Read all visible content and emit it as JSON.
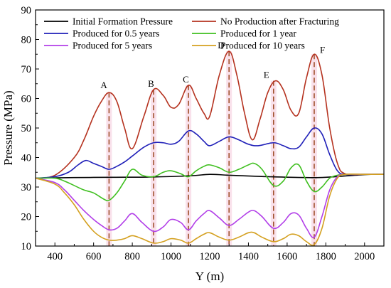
{
  "chart_data": {
    "type": "line",
    "xlabel": "Y (m)",
    "ylabel": "Pressure (MPa)",
    "xlim": [
      300,
      2100
    ],
    "ylim": [
      10,
      90
    ],
    "xticks": [
      400,
      600,
      800,
      1000,
      1200,
      1400,
      1600,
      1800,
      2000
    ],
    "yticks": [
      10,
      20,
      30,
      40,
      50,
      60,
      70,
      80,
      90
    ],
    "grid": false,
    "legend_position": "top",
    "series": [
      {
        "name": "Initial Formation Pressure",
        "color": "#000000",
        "x": [
          300,
          500,
          700,
          900,
          1100,
          1200,
          1300,
          1500,
          1700,
          1800,
          2000,
          2100
        ],
        "y": [
          33,
          33.2,
          33.3,
          33.4,
          33.8,
          34.3,
          34,
          33.5,
          33.2,
          33.3,
          34.2,
          34.3
        ]
      },
      {
        "name": "No Production after Fracturing",
        "color": "#b5321f",
        "x": [
          300,
          400,
          500,
          550,
          600,
          640,
          680,
          720,
          760,
          800,
          860,
          910,
          960,
          1000,
          1040,
          1090,
          1130,
          1170,
          1200,
          1250,
          1300,
          1340,
          1380,
          1420,
          1460,
          1500,
          1540,
          1580,
          1620,
          1660,
          1700,
          1740,
          1780,
          1820,
          1860,
          1900,
          2000,
          2100
        ],
        "y": [
          33,
          34,
          40,
          46,
          54,
          59,
          62,
          59,
          50,
          43,
          54,
          63,
          61,
          57,
          58,
          64.5,
          60,
          55,
          54,
          68,
          76,
          68,
          55,
          46,
          53,
          62,
          66,
          63,
          56,
          55,
          67,
          75,
          68,
          50,
          38,
          34.5,
          34.3,
          34.3
        ]
      },
      {
        "name": "Produced for 0.5 years",
        "color": "#1f1fb8",
        "x": [
          300,
          400,
          470,
          520,
          560,
          600,
          640,
          680,
          720,
          760,
          800,
          860,
          910,
          960,
          1000,
          1040,
          1090,
          1130,
          1170,
          1200,
          1250,
          1300,
          1350,
          1400,
          1450,
          1530,
          1580,
          1620,
          1660,
          1700,
          1740,
          1780,
          1820,
          1860,
          1900,
          2000,
          2100
        ],
        "y": [
          33,
          33.5,
          35,
          37.5,
          39,
          38,
          37,
          36,
          37,
          38.5,
          40.5,
          43.5,
          45,
          45,
          44.5,
          45.5,
          49,
          48,
          45.5,
          44,
          45.5,
          47,
          46,
          44.5,
          44,
          45,
          44,
          43,
          43.5,
          47,
          50,
          48,
          41,
          35.5,
          34.3,
          34.3,
          34.3
        ]
      },
      {
        "name": "Produced for 1 year",
        "color": "#3fbf1f",
        "x": [
          300,
          400,
          450,
          500,
          550,
          600,
          650,
          680,
          720,
          760,
          800,
          850,
          910,
          960,
          1000,
          1050,
          1090,
          1130,
          1170,
          1200,
          1250,
          1300,
          1350,
          1400,
          1430,
          1470,
          1530,
          1580,
          1620,
          1660,
          1700,
          1740,
          1780,
          1820,
          1860,
          1900,
          2000,
          2100
        ],
        "y": [
          33,
          33,
          32,
          30.5,
          29,
          28,
          26,
          25.5,
          28,
          32,
          36,
          34,
          33.5,
          35,
          35.5,
          34.5,
          33.5,
          35.5,
          37,
          37.5,
          36.5,
          35,
          36,
          37.5,
          38,
          36,
          30.5,
          32,
          36.5,
          37.5,
          32,
          28.5,
          30,
          33,
          34,
          34.3,
          34.3,
          34.3
        ]
      },
      {
        "name": "Produced for 5 years",
        "color": "#b23fe8",
        "x": [
          300,
          400,
          450,
          500,
          550,
          600,
          640,
          680,
          720,
          760,
          800,
          850,
          910,
          960,
          1000,
          1050,
          1090,
          1130,
          1170,
          1200,
          1250,
          1300,
          1350,
          1400,
          1430,
          1470,
          1530,
          1580,
          1620,
          1660,
          1700,
          1740,
          1780,
          1820,
          1860,
          1900,
          2000,
          2100
        ],
        "y": [
          33,
          31.5,
          29,
          25.5,
          22,
          19,
          17,
          15.5,
          16,
          18.5,
          21,
          18,
          15,
          16.5,
          19,
          18,
          15.5,
          18.5,
          21,
          22,
          19.5,
          17,
          19,
          21.5,
          22,
          20,
          16,
          18,
          21,
          20.5,
          16,
          13,
          20,
          29,
          33.5,
          34.3,
          34.3,
          34.3
        ]
      },
      {
        "name": "Produced for 10 years",
        "color": "#d4a01f",
        "x": [
          300,
          400,
          450,
          500,
          550,
          600,
          640,
          680,
          720,
          760,
          800,
          850,
          910,
          960,
          1000,
          1050,
          1090,
          1130,
          1170,
          1200,
          1250,
          1300,
          1350,
          1400,
          1430,
          1470,
          1530,
          1580,
          1620,
          1660,
          1700,
          1740,
          1780,
          1820,
          1860,
          1900,
          2000,
          2100
        ],
        "y": [
          33,
          31,
          28,
          24,
          19,
          15,
          13,
          12,
          12,
          12.5,
          13.5,
          12.5,
          11,
          11.5,
          12.5,
          12,
          11,
          12.5,
          14,
          14.5,
          13,
          12,
          13,
          14.5,
          14.5,
          13,
          11.5,
          12.5,
          14,
          13.5,
          11.5,
          10.5,
          16,
          27,
          33,
          34.3,
          34.3,
          34.3
        ]
      }
    ],
    "annotations": [
      {
        "label": "A",
        "x": 680,
        "y_top": 62
      },
      {
        "label": "B",
        "x": 910,
        "y_top": 63
      },
      {
        "label": "C",
        "x": 1090,
        "y_top": 64.5
      },
      {
        "label": "D",
        "x": 1300,
        "y_top": 76
      },
      {
        "label": "E",
        "x": 1530,
        "y_top": 66
      },
      {
        "label": "F",
        "x": 1740,
        "y_top": 75
      }
    ],
    "guide_line_color": "#a0522d",
    "band_color": "#f7d9e6"
  }
}
